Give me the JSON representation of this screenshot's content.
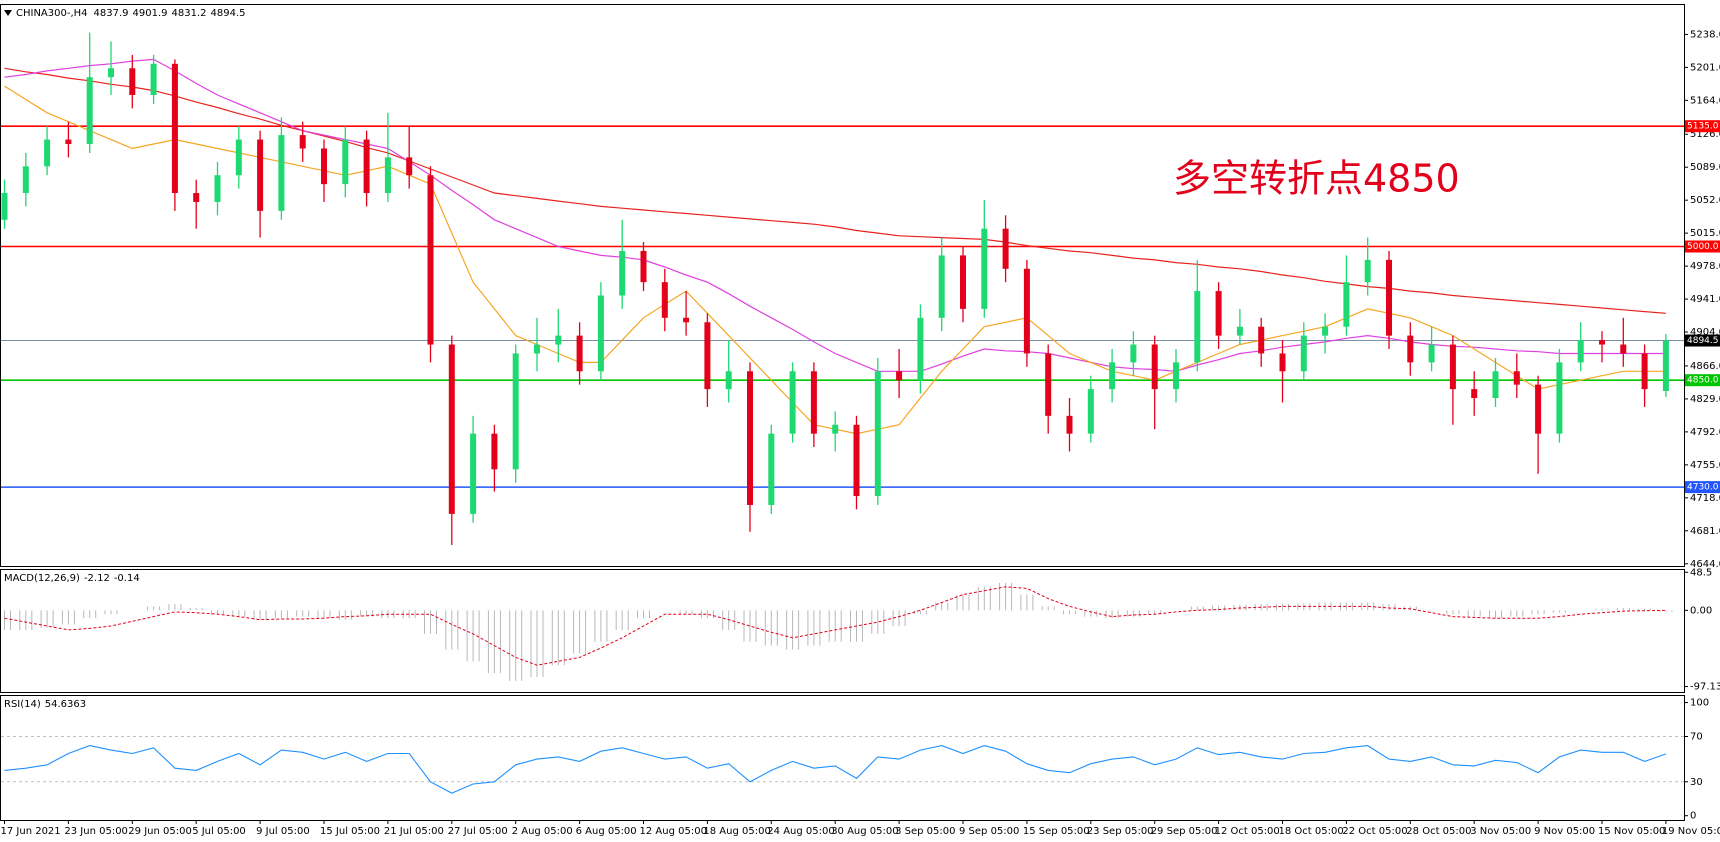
{
  "chart_data": [
    {
      "type": "candlestick",
      "title": "CHINA300-,H4",
      "annotation": "多空转折点4850",
      "categories": [
        "17 Jun 2021",
        null,
        null,
        "23 Jun 05:00",
        null,
        null,
        "29 Jun 05:00",
        null,
        null,
        "5 Jul 05:00",
        null,
        null,
        "9 Jul 05:00",
        null,
        null,
        "15 Jul 05:00",
        null,
        null,
        "21 Jul 05:00",
        null,
        null,
        "27 Jul 05:00",
        null,
        null,
        "2 Aug 05:00",
        null,
        null,
        "6 Aug 05:00",
        null,
        null,
        "12 Aug 05:00",
        null,
        null,
        "18 Aug 05:00",
        null,
        null,
        "24 Aug 05:00",
        null,
        null,
        "30 Aug 05:00",
        null,
        null,
        "3 Sep 05:00",
        null,
        null,
        "9 Sep 05:00",
        null,
        null,
        "15 Sep 05:00",
        null,
        null,
        "23 Sep 05:00",
        null,
        null,
        "29 Sep 05:00",
        null,
        null,
        "12 Oct 05:00",
        null,
        null,
        "18 Oct 05:00",
        null,
        null,
        "22 Oct 05:00",
        null,
        null,
        "28 Oct 05:00",
        null,
        null,
        "3 Nov 05:00",
        null,
        null,
        "9 Nov 05:00",
        null,
        null,
        "15 Nov 05:00",
        null,
        null,
        "19 Nov 05:00"
      ],
      "open": [
        5030,
        5060,
        5090,
        5120,
        5115,
        5190,
        5200,
        5170,
        5205,
        5060,
        5050,
        5080,
        5120,
        5040,
        5125,
        5110,
        5070,
        5120,
        5060,
        5100,
        5080,
        4890,
        4700,
        4790,
        4750,
        4880,
        4890,
        4900,
        4860,
        4945,
        4995,
        4960,
        4920,
        4915,
        4840,
        4860,
        4710,
        4790,
        4860,
        4790,
        4800,
        4720,
        4860,
        4850,
        4920,
        4990,
        4930,
        5020,
        4975,
        4880,
        4810,
        4790,
        4840,
        4870,
        4890,
        4840,
        4870,
        4950,
        4900,
        4910,
        4880,
        4860,
        4900,
        4910,
        4960,
        4985,
        4900,
        4870,
        4890,
        4840,
        4830,
        4860,
        4845,
        4790,
        4870,
        4895,
        4890,
        4880,
        4837.9
      ],
      "high": [
        5075,
        5105,
        5135,
        5140,
        5240,
        5230,
        5215,
        5215,
        5210,
        5075,
        5095,
        5135,
        5130,
        5145,
        5140,
        5120,
        5135,
        5130,
        5150,
        5135,
        5090,
        4900,
        4810,
        4800,
        4890,
        4920,
        4930,
        4915,
        4960,
        5030,
        5005,
        4975,
        4950,
        4925,
        4895,
        4870,
        4800,
        4870,
        4870,
        4815,
        4810,
        4875,
        4885,
        4935,
        5010,
        5000,
        5052,
        5035,
        4985,
        4890,
        4830,
        4855,
        4885,
        4905,
        4900,
        4885,
        4985,
        4960,
        4930,
        4920,
        4895,
        4915,
        4925,
        4990,
        5010,
        4995,
        4915,
        4910,
        4900,
        4860,
        4875,
        4880,
        4855,
        4885,
        4915,
        4905,
        4920,
        4890,
        4901.9
      ],
      "low": [
        5020,
        5045,
        5080,
        5100,
        5105,
        5170,
        5155,
        5160,
        5040,
        5020,
        5035,
        5065,
        5010,
        5030,
        5095,
        5050,
        5055,
        5045,
        5050,
        5065,
        4870,
        4665,
        4690,
        4725,
        4735,
        4860,
        4870,
        4845,
        4850,
        4930,
        4950,
        4905,
        4900,
        4820,
        4825,
        4680,
        4700,
        4780,
        4775,
        4770,
        4705,
        4710,
        4830,
        4835,
        4905,
        4915,
        4920,
        4960,
        4865,
        4790,
        4770,
        4780,
        4825,
        4855,
        4795,
        4825,
        4860,
        4885,
        4890,
        4865,
        4825,
        4850,
        4880,
        4900,
        4945,
        4885,
        4855,
        4860,
        4800,
        4810,
        4820,
        4830,
        4745,
        4780,
        4860,
        4870,
        4865,
        4820,
        4831.2
      ],
      "close": [
        5060,
        5090,
        5120,
        5115,
        5190,
        5200,
        5170,
        5205,
        5060,
        5050,
        5080,
        5120,
        5040,
        5125,
        5110,
        5070,
        5120,
        5060,
        5100,
        5080,
        4890,
        4700,
        4790,
        4750,
        4880,
        4890,
        4900,
        4860,
        4945,
        4995,
        4960,
        4920,
        4915,
        4840,
        4860,
        4710,
        4790,
        4860,
        4790,
        4800,
        4720,
        4860,
        4850,
        4920,
        4990,
        4930,
        5020,
        4975,
        4880,
        4810,
        4790,
        4840,
        4870,
        4890,
        4840,
        4870,
        4950,
        4900,
        4910,
        4880,
        4860,
        4900,
        4910,
        4960,
        4985,
        4900,
        4870,
        4890,
        4840,
        4830,
        4860,
        4845,
        4790,
        4870,
        4895,
        4890,
        4880,
        4840,
        4894.5
      ],
      "up_color": "#1ed872",
      "down_color": "#e3001b",
      "lines": [
        {
          "color": "#e8231f",
          "values": [
            5200,
            5196,
            5193,
            5189,
            5186,
            5182,
            5179,
            5175,
            5169,
            5162,
            5156,
            5149,
            5143,
            5136,
            5130,
            5124,
            5118,
            5111,
            5105,
            5096,
            5087,
            5078,
            5069,
            5060,
            5057,
            5054,
            5051,
            5048,
            5045,
            5043,
            5041,
            5039,
            5037,
            5035,
            5033,
            5031,
            5029,
            5027,
            5025,
            5022,
            5018,
            5015,
            5012,
            5011,
            5010,
            5009,
            5008,
            5005,
            5001,
            4998,
            4995,
            4993,
            4990,
            4987,
            4985,
            4982,
            4980,
            4977,
            4975,
            4972,
            4968,
            4965,
            4961,
            4958,
            4955,
            4953,
            4950,
            4948,
            4945,
            4943,
            4941,
            4939,
            4937,
            4935,
            4933,
            4931,
            4929,
            4927,
            4925
          ]
        },
        {
          "color": "#e040e0",
          "values": [
            5190,
            5193,
            5197,
            5200,
            5203,
            5205,
            5208,
            5210,
            5197,
            5183,
            5170,
            5160,
            5150,
            5140,
            5130,
            5125,
            5120,
            5115,
            5110,
            5095,
            5080,
            5063,
            5047,
            5030,
            5020,
            5010,
            5000,
            4995,
            4990,
            4988,
            4985,
            4977,
            4968,
            4960,
            4947,
            4933,
            4920,
            4907,
            4893,
            4880,
            4870,
            4860,
            4860,
            4860,
            4868,
            4877,
            4885,
            4883,
            4882,
            4880,
            4875,
            4870,
            4865,
            4863,
            4862,
            4860,
            4867,
            4873,
            4880,
            4883,
            4887,
            4890,
            4893,
            4897,
            4900,
            4897,
            4893,
            4890,
            4888,
            4887,
            4885,
            4883,
            4882,
            4880,
            4880,
            4880,
            4880,
            4880,
            4880
          ]
        },
        {
          "color": "#f5a623",
          "values": [
            5180,
            5165,
            5150,
            5140,
            5130,
            5120,
            5110,
            5115,
            5120,
            5115,
            5110,
            5105,
            5100,
            5095,
            5090,
            5085,
            5080,
            5085,
            5090,
            5080,
            5070,
            5015,
            4960,
            4930,
            4900,
            4890,
            4880,
            4870,
            4870,
            4895,
            4920,
            4935,
            4950,
            4925,
            4900,
            4875,
            4850,
            4825,
            4800,
            4795,
            4790,
            4795,
            4800,
            4830,
            4860,
            4885,
            4910,
            4915,
            4920,
            4900,
            4880,
            4870,
            4860,
            4855,
            4850,
            4860,
            4870,
            4880,
            4890,
            4895,
            4900,
            4905,
            4910,
            4920,
            4930,
            4925,
            4920,
            4910,
            4900,
            4885,
            4870,
            4855,
            4840,
            4845,
            4850,
            4855,
            4860,
            4860,
            4860
          ]
        }
      ],
      "levels": [
        {
          "value": 5135,
          "label": "5135.0",
          "color": "#ff0000"
        },
        {
          "value": 5000,
          "label": "5000.0",
          "color": "#ff0000"
        },
        {
          "value": 4894.5,
          "color": "#7d8fa6"
        },
        {
          "value": 4850,
          "label": "4850.0",
          "color": "#00c400"
        },
        {
          "value": 4730,
          "label": "4730.0",
          "color": "#2255ff"
        }
      ],
      "ylim": [
        4641.5,
        5271
      ],
      "yticks": [
        {
          "value": 5238,
          "label": "5238.0"
        },
        {
          "value": 5201,
          "label": "5201.0"
        },
        {
          "value": 5164,
          "label": "5164.0"
        },
        {
          "value": 5126,
          "label": "5126.0"
        },
        {
          "value": 5089,
          "label": "5089.0"
        },
        {
          "value": 5052,
          "label": "5052.0"
        },
        {
          "value": 5015,
          "label": "5015.0"
        },
        {
          "value": 4978,
          "label": "4978.0"
        },
        {
          "value": 4941,
          "label": "4941.0"
        },
        {
          "value": 4904,
          "label": "4904.0"
        },
        {
          "value": 4866,
          "label": "4866.0"
        },
        {
          "value": 4829,
          "label": "4829.0"
        },
        {
          "value": 4792,
          "label": "4792.0"
        },
        {
          "value": 4755,
          "label": "4755.0"
        },
        {
          "value": 4718,
          "label": "4718.0"
        },
        {
          "value": 4681,
          "label": "4681.0"
        },
        {
          "value": 4644,
          "label": "4644.0"
        }
      ]
    },
    {
      "type": "macd",
      "title": "MACD(12,26,9)",
      "histogram": [
        -25,
        -25,
        -22,
        -18,
        -10,
        -5,
        0,
        5,
        8,
        3,
        -5,
        -8,
        -12,
        -10,
        -8,
        -10,
        -12,
        -8,
        -10,
        -10,
        -30,
        -50,
        -65,
        -80,
        -90,
        -85,
        -70,
        -55,
        -40,
        -25,
        -10,
        0,
        -5,
        -10,
        -25,
        -40,
        -45,
        -50,
        -45,
        -40,
        -40,
        -30,
        -20,
        -5,
        10,
        20,
        30,
        35,
        20,
        5,
        -5,
        -8,
        -10,
        -8,
        -5,
        0,
        5,
        6,
        7,
        8,
        8,
        9,
        10,
        10,
        10,
        8,
        5,
        0,
        -5,
        -8,
        -10,
        -8,
        -5,
        -3,
        0,
        2,
        3,
        2,
        -2.12
      ],
      "signal": [
        -10,
        -15,
        -20,
        -25,
        -23,
        -20,
        -14,
        -8,
        -2,
        -3,
        -5,
        -8,
        -12,
        -11,
        -11,
        -10,
        -8,
        -7,
        -5,
        -5,
        -5,
        -18,
        -30,
        -45,
        -60,
        -70,
        -65,
        -60,
        -48,
        -35,
        -20,
        -5,
        -5,
        -5,
        -12,
        -20,
        -28,
        -35,
        -30,
        -25,
        -20,
        -15,
        -8,
        0,
        10,
        20,
        25,
        30,
        28,
        15,
        5,
        -2,
        -8,
        -6,
        -5,
        -2,
        0,
        1,
        3,
        4,
        5,
        5,
        5,
        5,
        5,
        3,
        2,
        -3,
        -8,
        -9,
        -10,
        -10,
        -10,
        -8,
        -5,
        -3,
        -1,
        -0.5,
        -0.14
      ],
      "histogram_color": "#b8b8b8",
      "signal_color": "#e3001b",
      "ylim": [
        -104.1,
        51.4
      ],
      "yticks": [
        48.5,
        {
          "value": 0,
          "label": "0.00"
        },
        -97.13
      ]
    },
    {
      "type": "line",
      "title": "RSI(14)",
      "color": "#1e90ff",
      "values": [
        40,
        42,
        45,
        55,
        62,
        58,
        55,
        60,
        42,
        40,
        48,
        55,
        45,
        58,
        56,
        50,
        56,
        48,
        55,
        55,
        30,
        20,
        28,
        30,
        45,
        50,
        52,
        48,
        57,
        60,
        55,
        50,
        52,
        42,
        46,
        30,
        40,
        48,
        42,
        44,
        33,
        52,
        50,
        58,
        62,
        55,
        62,
        57,
        46,
        40,
        38,
        46,
        50,
        52,
        45,
        50,
        60,
        54,
        56,
        52,
        50,
        55,
        56,
        60,
        62,
        50,
        48,
        52,
        45,
        44,
        49,
        47,
        38,
        52,
        58,
        56,
        56,
        48,
        54.6363
      ],
      "ylim": [
        -3.8,
        105.8
      ],
      "yticks": [
        100,
        70,
        30,
        0
      ]
    }
  ]
}
